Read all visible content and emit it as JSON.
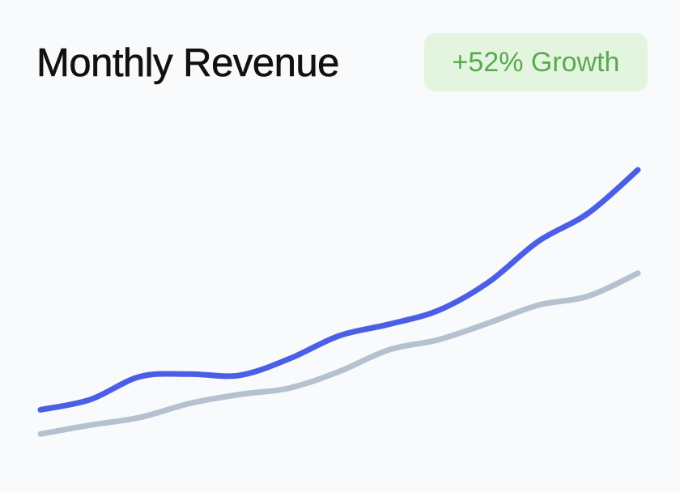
{
  "header": {
    "title": "Monthly Revenue",
    "badge": "+52% Growth"
  },
  "colors": {
    "primary_line": "#4a5fe6",
    "secondary_line": "#b6c1cf",
    "badge_bg": "#e4f5df",
    "badge_text": "#5aa94f"
  },
  "chart_data": {
    "type": "line",
    "title": "Monthly Revenue",
    "xlabel": "",
    "ylabel": "",
    "grid": false,
    "legend": "none",
    "x": [
      0,
      1,
      2,
      3,
      4,
      5,
      6,
      7,
      8,
      9,
      10,
      11,
      12
    ],
    "series": [
      {
        "values": [
          4,
          12,
          30,
          32,
          31,
          44,
          62,
          71,
          82,
          104,
          136,
          158,
          192
        ]
      },
      {
        "values": [
          -15,
          -8,
          -2,
          9,
          16,
          21,
          34,
          51,
          59,
          72,
          86,
          93,
          111
        ]
      }
    ],
    "ylim": [
      -30,
      230
    ]
  }
}
